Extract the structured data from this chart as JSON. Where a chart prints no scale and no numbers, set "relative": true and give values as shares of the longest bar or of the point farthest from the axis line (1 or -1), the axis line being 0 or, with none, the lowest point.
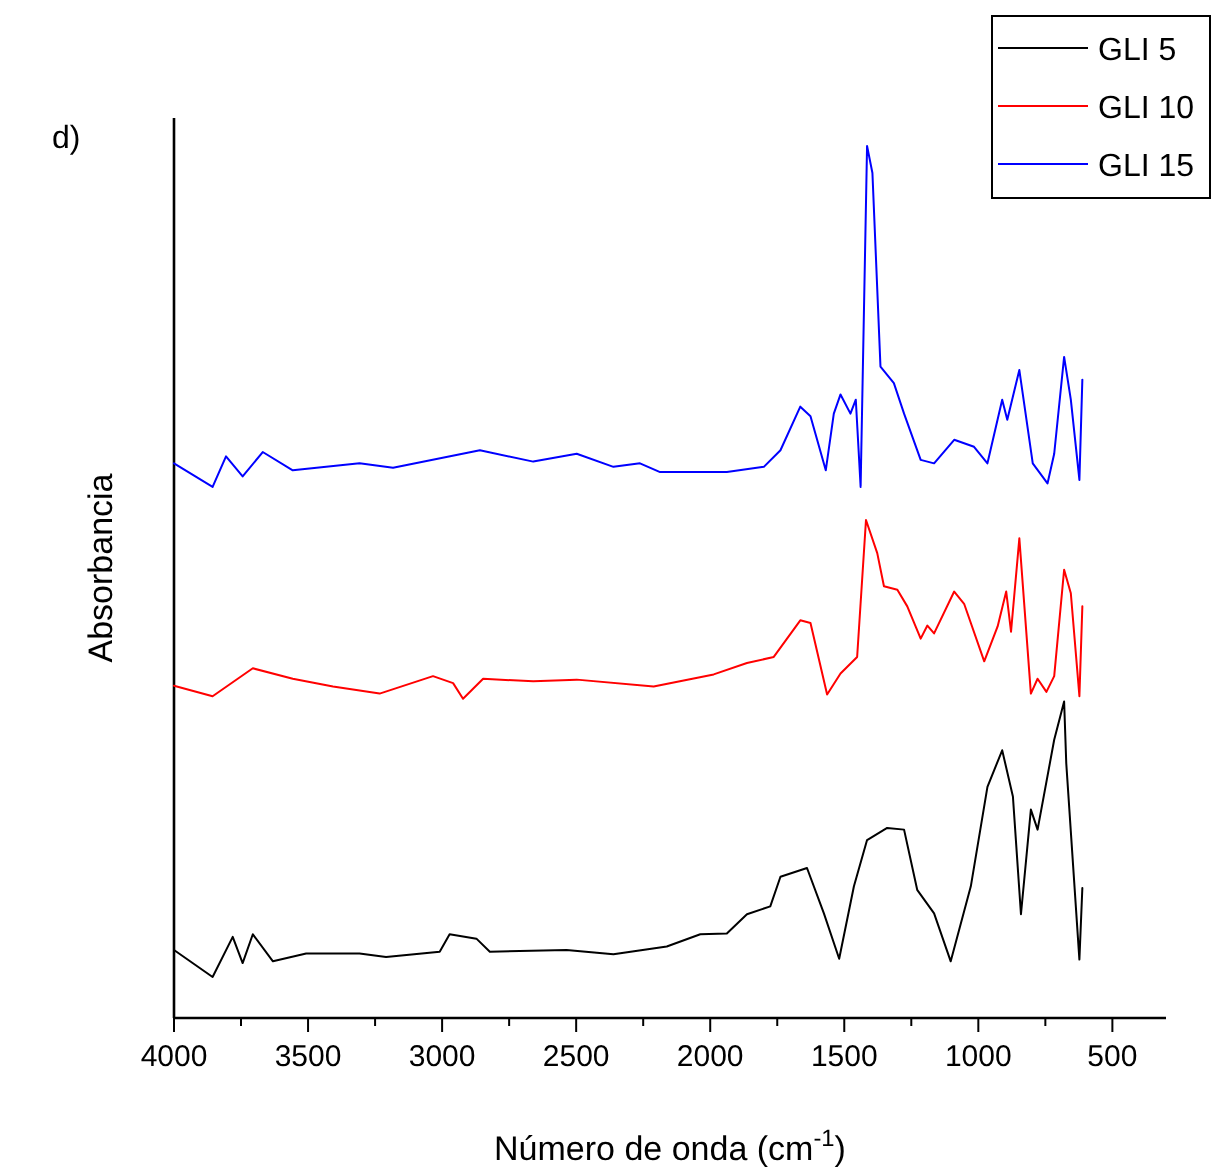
{
  "chart_data": {
    "type": "line",
    "relative": true,
    "xlabel": "Número de onda (cm$^{-1}$)",
    "ylabel": "Absorbancia",
    "annotations": [
      "d)"
    ],
    "xlim": [
      4000,
      300
    ],
    "xticks": [
      4000,
      {
        "value": 3750,
        "label": null
      },
      3500,
      {
        "value": 3250,
        "label": null
      },
      3000,
      {
        "value": 2750,
        "label": null
      },
      2500,
      {
        "value": 2250,
        "label": null
      },
      2000,
      {
        "value": 1750,
        "label": null
      },
      1500,
      {
        "value": 1250,
        "label": null
      },
      1000,
      {
        "value": 750,
        "label": null
      },
      500
    ],
    "legend": "top right",
    "grid": false,
    "line_style": "solid",
    "series": [
      {
        "name": "GLI 5",
        "color": "#000000",
        "x": [
          4000,
          3856,
          3781,
          3744,
          3706,
          3631,
          3507,
          3308,
          3209,
          3009,
          2972,
          2872,
          2822,
          2536,
          2361,
          2162,
          2037,
          1938,
          1863,
          1776,
          1738,
          1639,
          1576,
          1519,
          1464,
          1415,
          1340,
          1277,
          1228,
          1165,
          1103,
          1028,
          966,
          911,
          871,
          841,
          804,
          779,
          717,
          680,
          672,
          623,
          612
        ],
        "values": [
          0.078,
          0.047,
          0.093,
          0.063,
          0.096,
          0.065,
          0.074,
          0.074,
          0.07,
          0.076,
          0.096,
          0.091,
          0.076,
          0.078,
          0.073,
          0.082,
          0.096,
          0.097,
          0.119,
          0.128,
          0.162,
          0.172,
          0.12,
          0.068,
          0.151,
          0.204,
          0.218,
          0.216,
          0.147,
          0.12,
          0.065,
          0.151,
          0.265,
          0.307,
          0.254,
          0.119,
          0.239,
          0.216,
          0.319,
          0.363,
          0.292,
          0.067,
          0.149
        ]
      },
      {
        "name": "GLI 10",
        "color": "#ff0000",
        "x": [
          4000,
          3856,
          3706,
          3557,
          3407,
          3233,
          3034,
          2959,
          2922,
          2847,
          2660,
          2498,
          2211,
          1987,
          1863,
          1763,
          1664,
          1626,
          1564,
          1514,
          1452,
          1419,
          1377,
          1352,
          1302,
          1265,
          1215,
          1190,
          1165,
          1090,
          1053,
          978,
          928,
          896,
          878,
          847,
          804,
          779,
          746,
          717,
          680,
          655,
          623,
          612
        ],
        "values": [
          0.381,
          0.369,
          0.401,
          0.389,
          0.38,
          0.372,
          0.392,
          0.384,
          0.366,
          0.389,
          0.386,
          0.388,
          0.38,
          0.394,
          0.407,
          0.414,
          0.456,
          0.453,
          0.371,
          0.395,
          0.414,
          0.571,
          0.533,
          0.495,
          0.491,
          0.472,
          0.435,
          0.45,
          0.441,
          0.489,
          0.475,
          0.409,
          0.449,
          0.489,
          0.443,
          0.55,
          0.372,
          0.389,
          0.374,
          0.392,
          0.514,
          0.487,
          0.369,
          0.472
        ]
      },
      {
        "name": "GLI 15",
        "color": "#0000ff",
        "x": [
          4000,
          3856,
          3806,
          3744,
          3669,
          3557,
          3308,
          3183,
          2859,
          2660,
          2498,
          2361,
          2262,
          2187,
          1938,
          1800,
          1738,
          1664,
          1626,
          1569,
          1539,
          1514,
          1477,
          1457,
          1439,
          1415,
          1395,
          1365,
          1315,
          1277,
          1215,
          1165,
          1090,
          1016,
          966,
          911,
          892,
          847,
          797,
          742,
          717,
          680,
          655,
          623,
          612
        ],
        "values": [
          0.636,
          0.609,
          0.644,
          0.621,
          0.649,
          0.628,
          0.636,
          0.631,
          0.651,
          0.638,
          0.647,
          0.632,
          0.636,
          0.626,
          0.626,
          0.632,
          0.651,
          0.701,
          0.69,
          0.628,
          0.693,
          0.715,
          0.693,
          0.709,
          0.609,
          1,
          0.969,
          0.747,
          0.728,
          0.693,
          0.64,
          0.636,
          0.663,
          0.655,
          0.636,
          0.709,
          0.686,
          0.743,
          0.636,
          0.613,
          0.647,
          0.758,
          0.709,
          0.617,
          0.732
        ]
      }
    ]
  }
}
